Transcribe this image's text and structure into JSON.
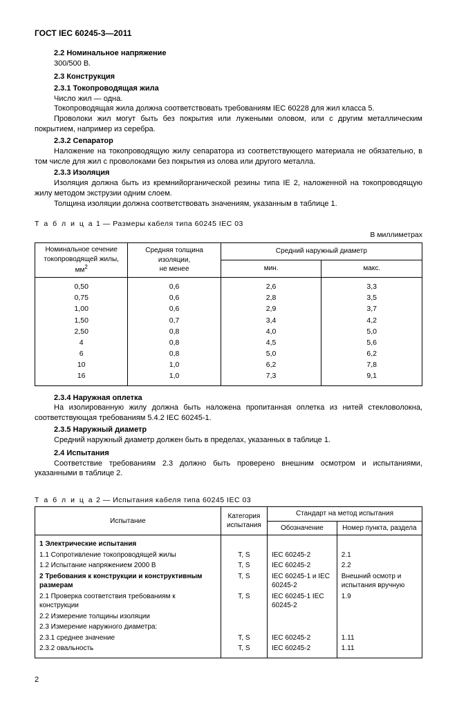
{
  "header": "ГОСТ IEC 60245-3—2011",
  "s22_title": "2.2  Номинальное напряжение",
  "s22_body": "300/500 В.",
  "s23_title": "2.3  Конструкция",
  "s231_title": "2.3.1  Токопроводящая жила",
  "s231_p1": "Число жил — одна.",
  "s231_p2": "Токопроводящая жила должна соответствовать требованиям IEC 60228 для жил класса 5.",
  "s231_p3": "Проволоки жил могут быть без покрытия или лужеными оловом, или с другим металлическим покрытием, например из серебра.",
  "s232_title": "2.3.2  Сепаратор",
  "s232_p1": "Наложение на токопроводящую жилу сепаратора из соответствующего материала не обязательно, в том числе для жил с проволоками без покрытия из олова или другого металла.",
  "s233_title": "2.3.3  Изоляция",
  "s233_p1": "Изоляция должна быть из кремнийорганической резины типа IE 2, наложенной на токопроводящую жилу методом экструзии одним слоем.",
  "s233_p2": "Толщина изоляции должна соответствовать значениям, указанным в таблице 1.",
  "table1_caption_prefix": "Т а б л и ц а",
  "table1_caption_rest": "  1 — Размеры кабеля типа 60245 IEC 03",
  "table1_unit": "В миллиметрах",
  "t1_h1_a": "Номинальное сечение",
  "t1_h1_b": "токопроводящей жилы, мм",
  "t1_h1_sup": "2",
  "t1_h2_a": "Средняя толщина изоляции,",
  "t1_h2_b": "не менее",
  "t1_h3": "Средний наружный диаметр",
  "t1_h3a": "мин.",
  "t1_h3b": "макс.",
  "t1_rows": [
    {
      "c1": "0,50",
      "c2": "0,6",
      "c3": "2,6",
      "c4": "3,3"
    },
    {
      "c1": "0,75",
      "c2": "0,6",
      "c3": "2,8",
      "c4": "3,5"
    },
    {
      "c1": "1,00",
      "c2": "0,6",
      "c3": "2,9",
      "c4": "3,7"
    },
    {
      "c1": "1,50",
      "c2": "0,7",
      "c3": "3,4",
      "c4": "4,2"
    },
    {
      "c1": "2,50",
      "c2": "0,8",
      "c3": "4,0",
      "c4": "5,0"
    },
    {
      "c1": "4",
      "c2": "0,8",
      "c3": "4,5",
      "c4": "5,6"
    },
    {
      "c1": "6",
      "c2": "0,8",
      "c3": "5,0",
      "c4": "6,2"
    },
    {
      "c1": "10",
      "c2": "1,0",
      "c3": "6,2",
      "c4": "7,8"
    },
    {
      "c1": "16",
      "c2": "1,0",
      "c3": "7,3",
      "c4": "9,1"
    }
  ],
  "s234_title": "2.3.4  Наружная оплетка",
  "s234_p1": "На изолированную жилу должна быть наложена пропитанная оплетка из нитей стекловолокна, соответствующая требованиям 5.4.2 IEC 60245-1.",
  "s235_title": "2.3.5  Наружный диаметр",
  "s235_p1": "Средний наружный диаметр должен быть в пределах, указанных в таблице 1.",
  "s24_title": "2.4  Испытания",
  "s24_p1": "Соответствие требованиям 2.3 должно быть проверено внешним осмотром и испытаниями, указанными в таблице 2.",
  "table2_caption_rest": "  2 — Испытания кабеля типа 60245 IEC 03",
  "t2_h1": "Испытание",
  "t2_h2": "Категория испытания",
  "t2_h3": "Стандарт на метод испытания",
  "t2_h3a": "Обозначение",
  "t2_h3b": "Номер пункта, раздела",
  "t2_rows": [
    {
      "c1": "1  Электрические испытания",
      "bold": true,
      "c2": "",
      "c3": "",
      "c4": ""
    },
    {
      "c1": "1.1  Сопротивление токопроводящей жилы",
      "c2": "T, S",
      "c3": "IEC 60245-2",
      "c4": "2.1"
    },
    {
      "c1": "1.2  Испытание напряжением 2000 В",
      "c2": "T, S",
      "c3": "IEC 60245-2",
      "c4": "2.2"
    },
    {
      "c1": "2  Требования к конструкции и конструктивным размерам",
      "bold": true,
      "c2": "T, S",
      "c3": "IEC 60245-1 и IEC 60245-2",
      "c4": "Внешний осмотр и испытания вручную"
    },
    {
      "c1": "2.1  Проверка соответствия требованиям к конструкции",
      "c2": "T, S",
      "c3": "IEC 60245-1 IEC 60245-2",
      "c4": "1.9"
    },
    {
      "c1": "2.2  Измерение толщины изоляции",
      "c2": "",
      "c3": "",
      "c4": ""
    },
    {
      "c1": "2.3  Измерение наружного диаметра:",
      "c2": "",
      "c3": "",
      "c4": ""
    },
    {
      "c1": "2.3.1  среднее значение",
      "c2": "T, S",
      "c3": "IEC 60245-2",
      "c4": "1.11"
    },
    {
      "c1": "2.3.2  овальность",
      "c2": "T, S",
      "c3": "IEC 60245-2",
      "c4": "1.11"
    }
  ],
  "pagenum": "2"
}
